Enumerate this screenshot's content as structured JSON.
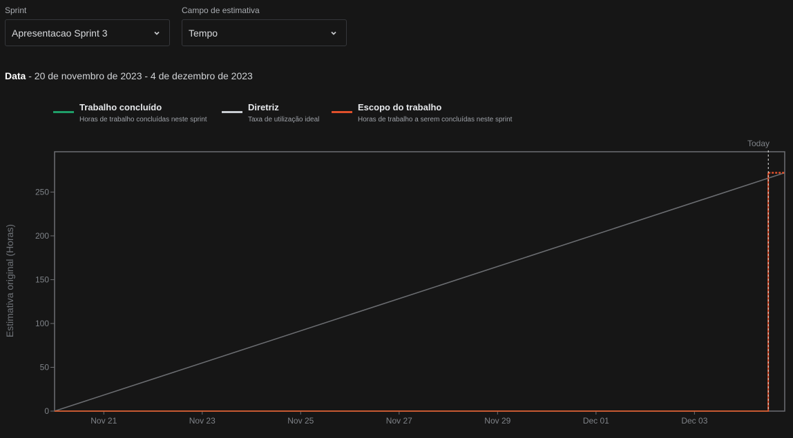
{
  "filters": {
    "sprint": {
      "label": "Sprint",
      "value": "Apresentacao Sprint 3"
    },
    "estimate_field": {
      "label": "Campo de estimativa",
      "value": "Tempo"
    }
  },
  "date_range": {
    "label": "Data",
    "text": " - 20 de novembro de 2023 - 4 de dezembro de 2023"
  },
  "legend": [
    {
      "title": "Trabalho concluído",
      "desc": "Horas de trabalho concluídas neste sprint",
      "color": "#1f9e68"
    },
    {
      "title": "Diretriz",
      "desc": "Taxa de utilização ideal",
      "color": "#c8ccd1"
    },
    {
      "title": "Escopo do trabalho",
      "desc": "Horas de trabalho a serem concluídas neste sprint",
      "color": "#e0502b"
    }
  ],
  "chart_data": {
    "type": "line",
    "ylabel": "Estimativa original (Horas)",
    "ylim": [
      0,
      296
    ],
    "yticks": [
      0,
      50,
      100,
      150,
      200,
      250
    ],
    "xlim": [
      "2023-11-20",
      "2023-12-04T20:00"
    ],
    "xticks": [
      {
        "date": "2023-11-21",
        "label": "Nov 21"
      },
      {
        "date": "2023-11-23",
        "label": "Nov 23"
      },
      {
        "date": "2023-11-25",
        "label": "Nov 25"
      },
      {
        "date": "2023-11-27",
        "label": "Nov 27"
      },
      {
        "date": "2023-11-29",
        "label": "Nov 29"
      },
      {
        "date": "2023-12-01",
        "label": "Dec 01"
      },
      {
        "date": "2023-12-03",
        "label": "Dec 03"
      }
    ],
    "today": {
      "label": "Today",
      "date": "2023-12-04T12:00"
    },
    "series": [
      {
        "name": "Diretriz",
        "color": "#6a6c70",
        "points": [
          [
            "2023-11-20",
            0
          ],
          [
            "2023-12-04T20:00",
            272
          ]
        ]
      },
      {
        "name": "Escopo do trabalho",
        "color": "#e0502b",
        "points": [
          [
            "2023-11-20",
            0
          ],
          [
            "2023-12-04T12:00",
            0
          ],
          [
            "2023-12-04T12:00",
            272
          ]
        ],
        "projection": [
          [
            "2023-12-04T12:00",
            272
          ],
          [
            "2023-12-04T20:00",
            272
          ]
        ]
      },
      {
        "name": "Trabalho concluído",
        "color": "#1f9e68",
        "points": [
          [
            "2023-11-20",
            0
          ],
          [
            "2023-12-04T12:00",
            0
          ]
        ]
      }
    ]
  }
}
